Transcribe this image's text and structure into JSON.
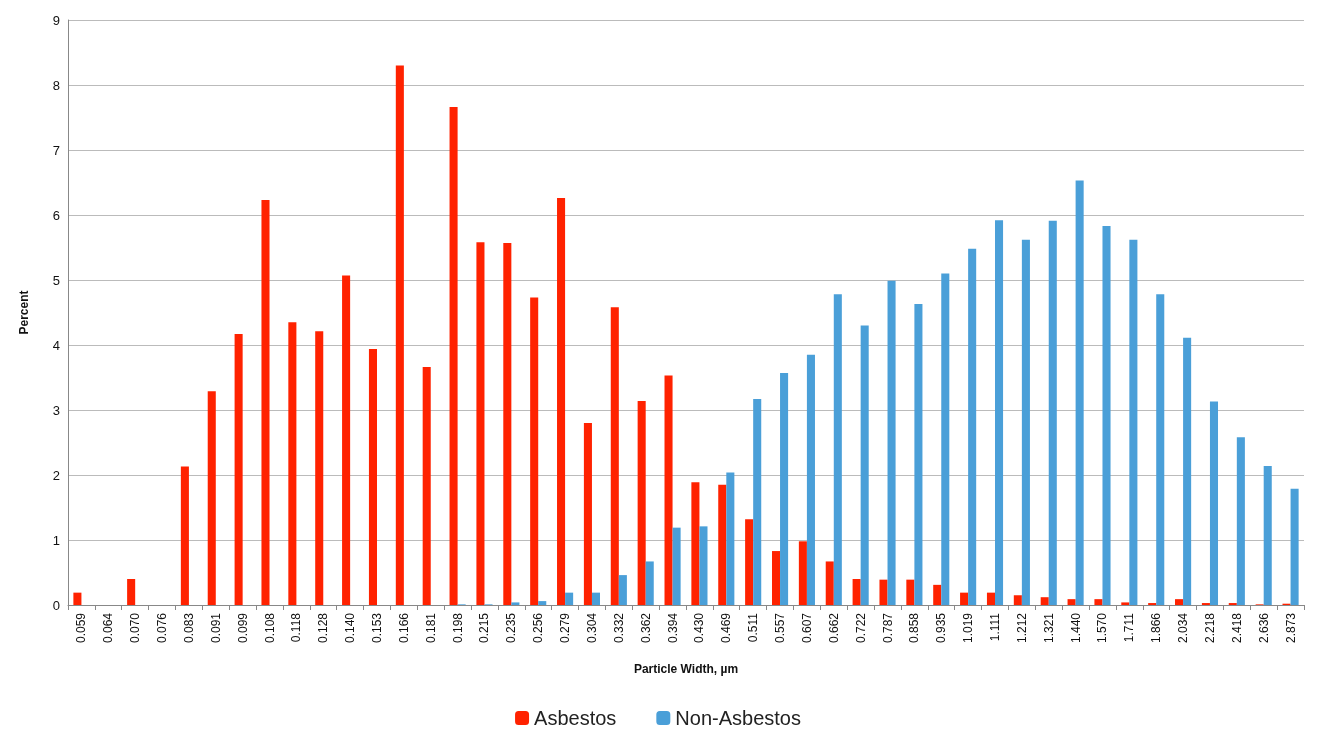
{
  "chart_data": {
    "type": "bar",
    "xlabel": "Particle Width, µm",
    "ylabel": "Percent",
    "categories": [
      "0.059",
      "0.064",
      "0.070",
      "0.076",
      "0.083",
      "0.091",
      "0.099",
      "0.108",
      "0.118",
      "0.128",
      "0.140",
      "0.153",
      "0.166",
      "0.181",
      "0.198",
      "0.215",
      "0.235",
      "0.256",
      "0.279",
      "0.304",
      "0.332",
      "0.362",
      "0.394",
      "0.430",
      "0.469",
      "0.511",
      "0.557",
      "0.607",
      "0.662",
      "0.722",
      "0.787",
      "0.858",
      "0.935",
      "1.019",
      "1.111",
      "1.212",
      "1.321",
      "1.440",
      "1.570",
      "1.711",
      "1.866",
      "2.034",
      "2.218",
      "2.418",
      "2.636",
      "2.873"
    ],
    "series": [
      {
        "name": "Asbestos",
        "color": "#ff2200",
        "values": [
          0.19,
          0,
          0.4,
          0,
          2.13,
          3.29,
          4.17,
          6.23,
          4.35,
          4.21,
          5.07,
          3.94,
          8.3,
          3.66,
          7.66,
          5.58,
          5.57,
          4.73,
          6.26,
          2.8,
          4.58,
          3.14,
          3.53,
          1.89,
          1.85,
          1.32,
          0.83,
          0.98,
          0.67,
          0.4,
          0.39,
          0.39,
          0.31,
          0.19,
          0.19,
          0.15,
          0.12,
          0.09,
          0.09,
          0.04,
          0.03,
          0.09,
          0.03,
          0.03,
          0.01,
          0.02
        ]
      },
      {
        "name": "Non-Asbestos",
        "color": "#4a9fd8",
        "values": [
          0,
          0,
          0,
          0,
          0,
          0,
          0,
          0,
          0,
          0,
          0,
          0,
          0,
          0,
          0.01,
          0.01,
          0.04,
          0.06,
          0.19,
          0.19,
          0.46,
          0.67,
          1.19,
          1.21,
          2.04,
          3.17,
          3.57,
          3.85,
          4.78,
          4.3,
          4.99,
          4.63,
          5.1,
          5.48,
          5.92,
          5.62,
          5.91,
          6.53,
          5.83,
          5.62,
          4.78,
          4.11,
          3.13,
          2.58,
          2.14,
          1.79
        ]
      }
    ],
    "ylim": [
      0,
      9
    ],
    "yticks": [
      0,
      1,
      2,
      3,
      4,
      5,
      6,
      7,
      8,
      9
    ],
    "grid": "y",
    "legend": "bottom"
  }
}
